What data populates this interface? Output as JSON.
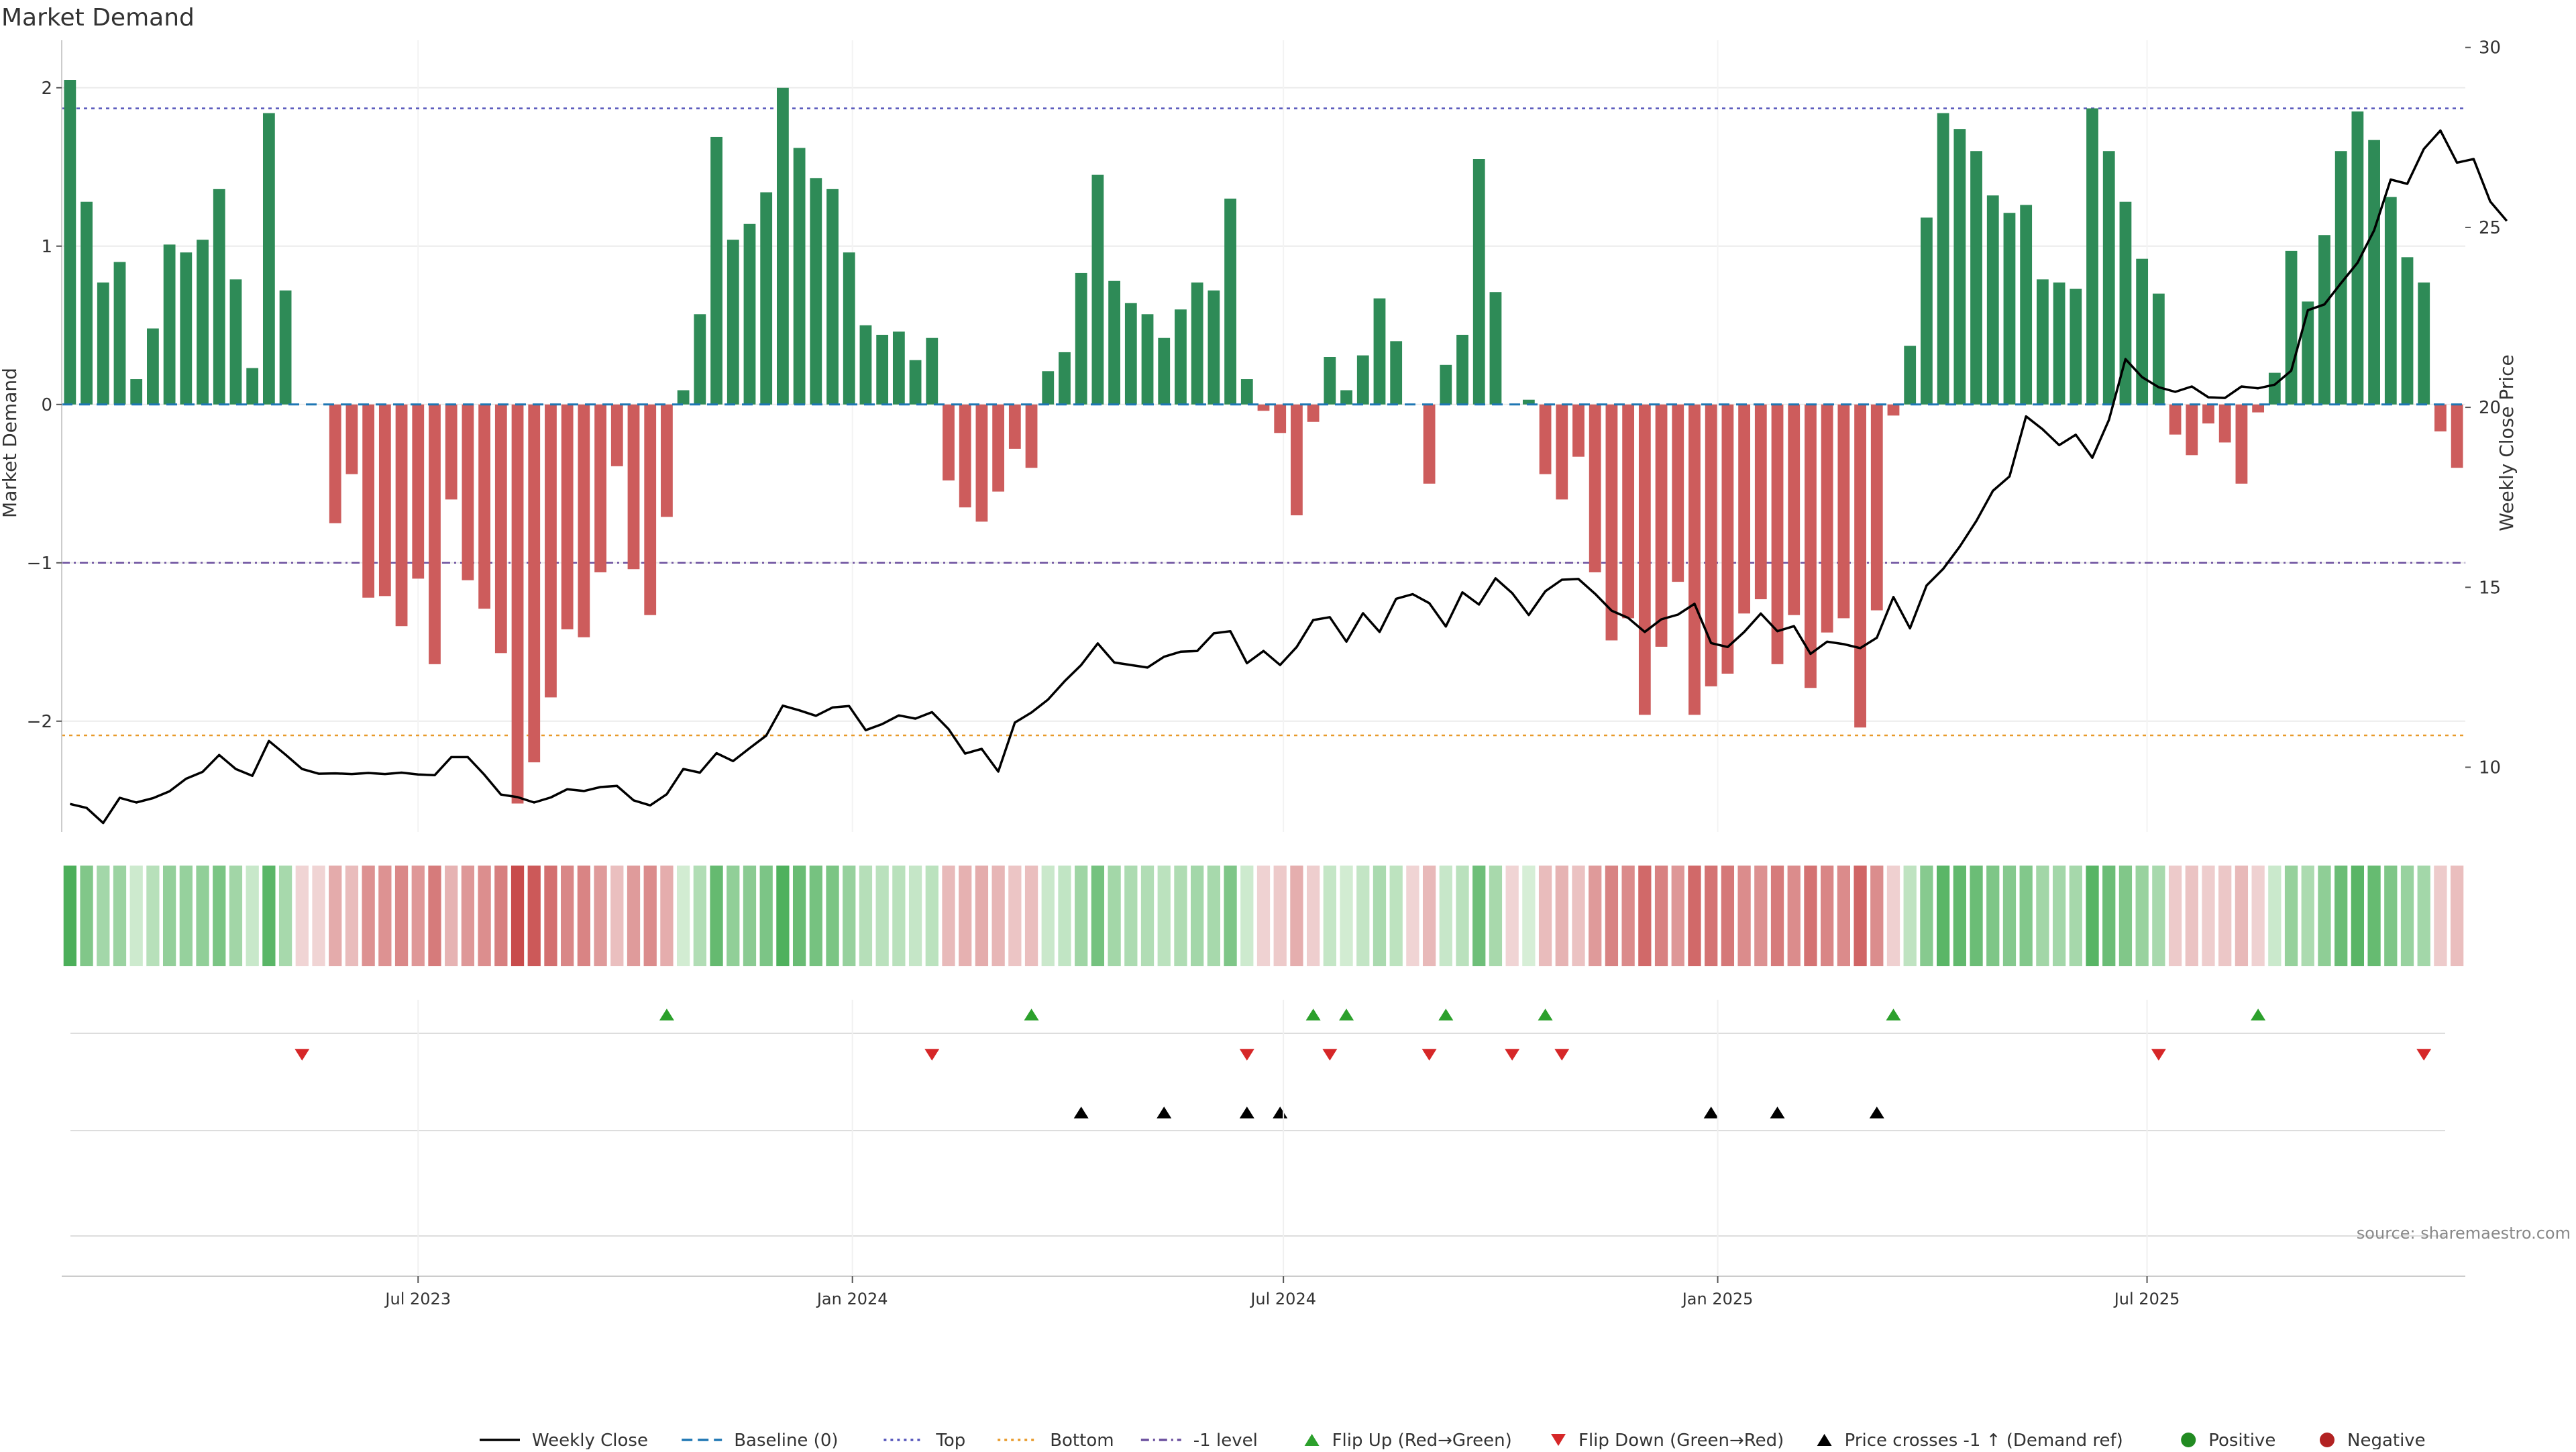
{
  "chart_data": {
    "type": "bar",
    "title": "Market Demand",
    "ylabel": "Market Demand",
    "y2label": "Weekly Close Price",
    "ylim": [
      -2.7,
      2.3
    ],
    "y2lim": [
      8.2,
      30.2
    ],
    "yticks": [
      -2,
      -1,
      0,
      1,
      2
    ],
    "yticklabels": [
      "−2",
      "−1",
      "0",
      "1",
      "2"
    ],
    "y2ticks": [
      10,
      15,
      20,
      25,
      30
    ],
    "y2ticklabels": [
      "10",
      "15",
      "20",
      "25",
      "30"
    ],
    "xticks": [
      {
        "week": 21.5,
        "label": "Jul 2023"
      },
      {
        "week": 47.7,
        "label": "Jan 2024"
      },
      {
        "week": 73.7,
        "label": "Jul 2024"
      },
      {
        "week": 99.9,
        "label": "Jan 2025"
      },
      {
        "week": 125.8,
        "label": "Jul 2025"
      }
    ],
    "reference_lines": {
      "top": 1.87,
      "bottom": -2.09,
      "minus_one": -1.0,
      "baseline": 0
    },
    "demand": [
      2.05,
      1.28,
      0.77,
      0.9,
      0.16,
      0.48,
      1.01,
      0.96,
      1.04,
      1.36,
      0.79,
      0.23,
      1.84,
      0.72,
      0,
      0,
      -0.75,
      -0.44,
      -1.22,
      -1.21,
      -1.4,
      -1.1,
      -1.64,
      -0.6,
      -1.11,
      -1.29,
      -1.57,
      -2.52,
      -2.26,
      -1.85,
      -1.42,
      -1.47,
      -1.06,
      -0.39,
      -1.04,
      -1.33,
      -0.71,
      0.09,
      0.57,
      1.69,
      1.04,
      1.14,
      1.34,
      2.0,
      1.62,
      1.43,
      1.36,
      0.96,
      0.5,
      0.44,
      0.46,
      0.28,
      0.42,
      -0.48,
      -0.65,
      -0.74,
      -0.55,
      -0.28,
      -0.4,
      0.21,
      0.33,
      0.83,
      1.45,
      0.78,
      0.64,
      0.57,
      0.42,
      0.6,
      0.77,
      0.72,
      1.3,
      0.16,
      -0.04,
      -0.18,
      -0.7,
      -0.11,
      0.3,
      0.09,
      0.31,
      0.67,
      0.4,
      0,
      -0.5,
      0.25,
      0.44,
      1.55,
      0.71,
      0,
      0.03,
      -0.44,
      -0.6,
      -0.33,
      -1.06,
      -1.49,
      -1.35,
      -1.96,
      -1.53,
      -1.12,
      -1.96,
      -1.78,
      -1.7,
      -1.32,
      -1.23,
      -1.64,
      -1.33,
      -1.79,
      -1.44,
      -1.35,
      -2.04,
      -1.3,
      -0.07,
      0.37,
      1.18,
      1.84,
      1.74,
      1.6,
      1.32,
      1.21,
      1.26,
      0.79,
      0.77,
      0.73,
      1.87,
      1.6,
      1.28,
      0.92,
      0.7,
      -0.19,
      -0.32,
      -0.12,
      -0.24,
      -0.5,
      -0.05,
      0.2,
      0.97,
      0.65,
      1.07,
      1.6,
      1.85,
      1.67,
      1.31,
      0.93,
      0.77,
      -0.17,
      -0.4
    ],
    "weekly_close": [
      8.98,
      8.87,
      8.45,
      9.15,
      9.02,
      9.14,
      9.33,
      9.68,
      9.87,
      10.34,
      9.95,
      9.76,
      10.73,
      10.35,
      9.95,
      9.82,
      9.83,
      9.81,
      9.84,
      9.81,
      9.85,
      9.8,
      9.78,
      10.28,
      10.28,
      9.79,
      9.24,
      9.17,
      9.02,
      9.16,
      9.39,
      9.34,
      9.45,
      9.48,
      9.08,
      8.94,
      9.25,
      9.95,
      9.85,
      10.39,
      10.17,
      10.53,
      10.88,
      11.71,
      11.58,
      11.43,
      11.66,
      11.7,
      11.03,
      11.2,
      11.44,
      11.35,
      11.53,
      11.06,
      10.38,
      10.51,
      9.88,
      11.24,
      11.52,
      11.88,
      12.39,
      12.84,
      13.44,
      12.91,
      12.84,
      12.77,
      13.07,
      13.21,
      13.23,
      13.72,
      13.78,
      12.89,
      13.23,
      12.84,
      13.34,
      14.09,
      14.17,
      13.49,
      14.28,
      13.76,
      14.68,
      14.81,
      14.56,
      13.91,
      14.86,
      14.52,
      15.25,
      14.84,
      14.23,
      14.89,
      15.21,
      15.23,
      14.82,
      14.35,
      14.15,
      13.76,
      14.11,
      14.24,
      14.54,
      13.45,
      13.34,
      13.76,
      14.27,
      13.78,
      13.92,
      13.15,
      13.49,
      13.42,
      13.31,
      13.6,
      14.73,
      13.86,
      15.05,
      15.51,
      16.13,
      16.84,
      17.68,
      18.08,
      19.75,
      19.39,
      18.95,
      19.24,
      18.6,
      19.65,
      21.34,
      20.84,
      20.56,
      20.43,
      20.58,
      20.28,
      20.26,
      20.58,
      20.53,
      20.63,
      21.02,
      22.7,
      22.86,
      23.45,
      24.02,
      24.92,
      26.33,
      26.21,
      27.18,
      27.69,
      26.8,
      26.9,
      25.72,
      25.18
    ],
    "flip_up_weeks": [
      36,
      58,
      75,
      77,
      83,
      89,
      110,
      132
    ],
    "flip_down_weeks": [
      14,
      52,
      71,
      76,
      82,
      87,
      90,
      126,
      142
    ],
    "price_cross_weeks": [
      61,
      66,
      71,
      73,
      99,
      103,
      109
    ],
    "legend_position": "bottom",
    "legend": [
      {
        "key": "close",
        "label": "Weekly Close",
        "color": "#000000",
        "style": "line"
      },
      {
        "key": "baseline",
        "label": "Baseline (0)",
        "color": "#1f77b4",
        "style": "dash"
      },
      {
        "key": "top",
        "label": "Top",
        "color": "#5555bb",
        "style": "dot"
      },
      {
        "key": "bottom",
        "label": "Bottom",
        "color": "#e89a2a",
        "style": "dot"
      },
      {
        "key": "minus_one",
        "label": "-1 level",
        "color": "#6b4f9e",
        "style": "dashdot"
      },
      {
        "key": "flip_up",
        "label": "Flip Up (Red→Green)",
        "color": "#2ca02c",
        "style": "tri-up"
      },
      {
        "key": "flip_down",
        "label": "Flip Down (Green→Red)",
        "color": "#d62728",
        "style": "tri-down"
      },
      {
        "key": "cross",
        "label": "Price crosses -1 ↑ (Demand ref)",
        "color": "#000000",
        "style": "tri-up"
      },
      {
        "key": "positive",
        "label": "Positive",
        "color": "#228b22",
        "style": "dot-marker"
      },
      {
        "key": "negative",
        "label": "Negative",
        "color": "#b22222",
        "style": "dot-marker"
      }
    ],
    "source": "source: sharemaestro.com",
    "colors": {
      "positive": "#2e8b57",
      "negative": "#cd5c5c",
      "close": "#000000"
    }
  }
}
